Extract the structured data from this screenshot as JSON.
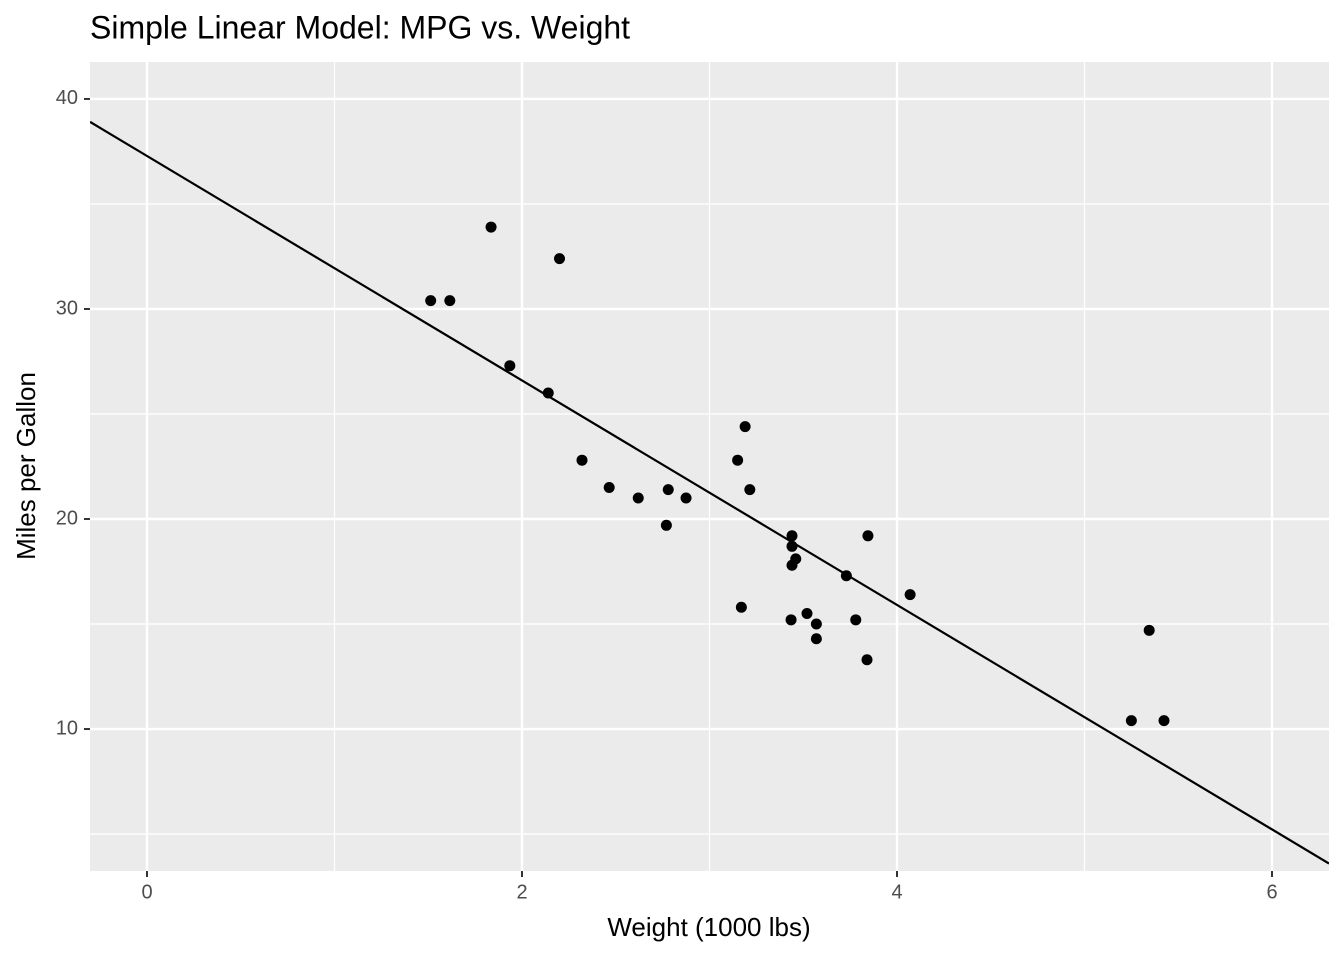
{
  "chart_data": {
    "type": "scatter",
    "title": "Simple Linear Model: MPG vs. Weight",
    "x_label": "Weight (1000 lbs)",
    "y_label": "Miles per Gallon",
    "x": [
      2.62,
      2.875,
      2.32,
      3.215,
      3.44,
      3.46,
      3.57,
      3.19,
      3.15,
      3.44,
      3.44,
      4.07,
      3.73,
      3.78,
      5.25,
      5.424,
      5.345,
      2.2,
      1.615,
      1.835,
      2.465,
      3.52,
      3.435,
      3.84,
      3.845,
      1.935,
      2.14,
      1.513,
      3.17,
      2.77,
      3.57,
      2.78
    ],
    "values": [
      21.0,
      21.0,
      22.8,
      21.4,
      18.7,
      18.1,
      14.3,
      24.4,
      22.8,
      19.2,
      17.8,
      16.4,
      17.3,
      15.2,
      10.4,
      10.4,
      14.7,
      32.4,
      30.4,
      33.9,
      21.5,
      15.5,
      15.2,
      13.3,
      19.2,
      27.3,
      26.0,
      30.4,
      15.8,
      19.7,
      15.0,
      21.4
    ],
    "color": "#000000",
    "trend_line": {
      "intercept": 37.285,
      "slope": -5.344,
      "color": "#000000"
    },
    "xlim": [
      -0.304,
      6.304
    ],
    "xticks": [
      0,
      2,
      4,
      6
    ],
    "ylim": [
      3.24,
      41.76
    ],
    "yticks": [
      10,
      20,
      30,
      40
    ],
    "grid": true,
    "minor_grid": true
  }
}
